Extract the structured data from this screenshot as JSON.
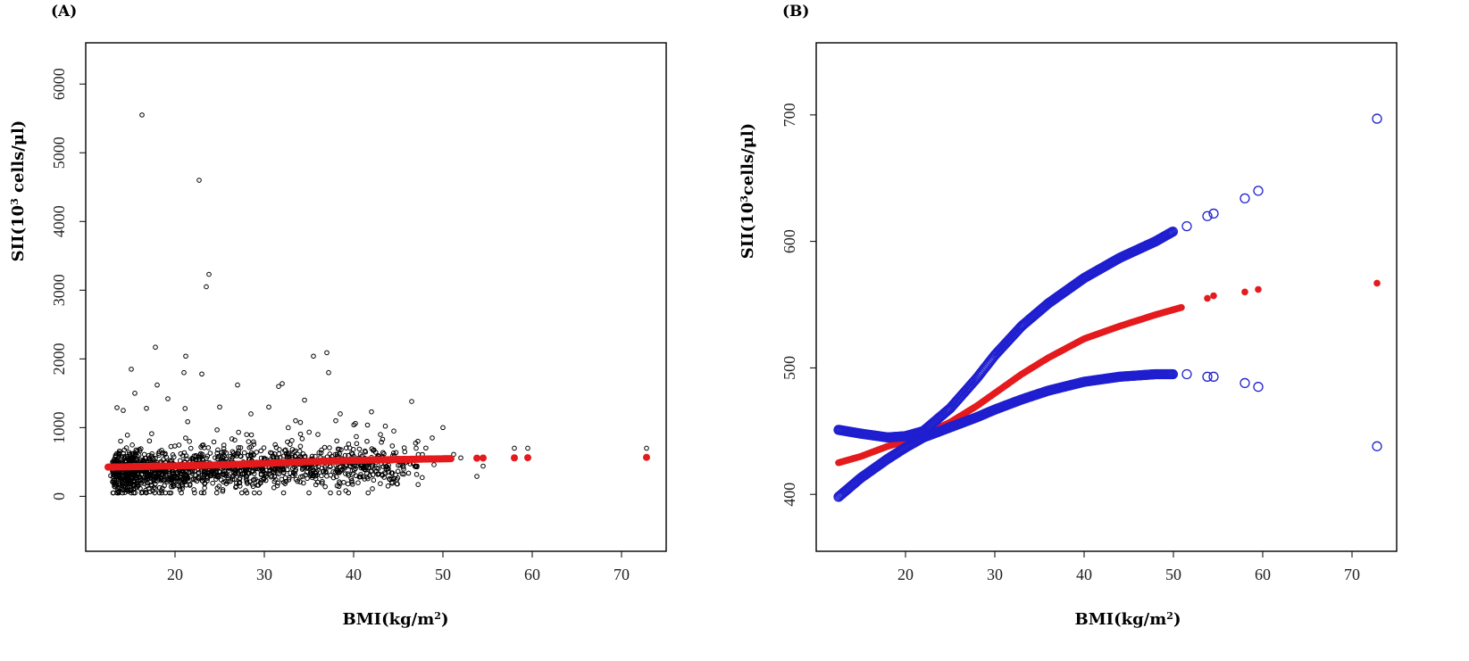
{
  "chart_data": [
    {
      "type": "scatter",
      "panel_label": "(A)",
      "xlabel_main": "BMI(kg/m",
      "xlabel_sup": "2",
      "xlabel_end": ")",
      "ylabel_main": "SII(10",
      "ylabel_sup": "3",
      "ylabel_end": " cells/μl)",
      "xlim": [
        10.0,
        75.0
      ],
      "ylim": [
        -800,
        6600
      ],
      "xticks": [
        "20",
        "30",
        "40",
        "50",
        "60",
        "70"
      ],
      "yticks": [
        "0",
        "1000",
        "2000",
        "3000",
        "4000",
        "5000",
        "6000"
      ],
      "series": [
        {
          "name": "observed",
          "style": "open-circle",
          "color": "#000000",
          "points": [
            [
              16.3,
              5550
            ],
            [
              22.7,
              4600
            ],
            [
              23.8,
              3230
            ],
            [
              23.5,
              3050
            ],
            [
              17.8,
              2170
            ],
            [
              37.0,
              2090
            ],
            [
              35.5,
              2040
            ],
            [
              21.2,
              2040
            ],
            [
              15.1,
              1850
            ],
            [
              37.2,
              1800
            ],
            [
              21.0,
              1800
            ],
            [
              23.0,
              1780
            ],
            [
              18.0,
              1620
            ],
            [
              32.0,
              1640
            ],
            [
              31.6,
              1600
            ],
            [
              27.0,
              1620
            ],
            [
              34.5,
              1400
            ],
            [
              38.5,
              1200
            ],
            [
              42.0,
              1230
            ],
            [
              46.5,
              1380
            ],
            [
              38.0,
              1100
            ],
            [
              40.2,
              1060
            ],
            [
              44.5,
              950
            ],
            [
              43.0,
              900
            ],
            [
              48.8,
              850
            ],
            [
              50.0,
              1000
            ],
            [
              47.0,
              700
            ],
            [
              51.2,
              610
            ],
            [
              53.8,
              290
            ],
            [
              54.5,
              440
            ],
            [
              58.0,
              700
            ],
            [
              59.5,
              700
            ],
            [
              72.8,
              700
            ],
            [
              49.0,
              460
            ],
            [
              45.0,
              450
            ],
            [
              13.5,
              1290
            ],
            [
              14.2,
              1250
            ],
            [
              15.5,
              1500
            ],
            [
              16.8,
              1280
            ],
            [
              19.2,
              1420
            ],
            [
              25.0,
              1300
            ],
            [
              28.5,
              1200
            ],
            [
              30.5,
              1300
            ],
            [
              33.5,
              1100
            ],
            [
              36.0,
              900
            ],
            [
              12.8,
              300
            ],
            [
              13.0,
              500
            ],
            [
              35.0,
              50
            ],
            [
              52.0,
              560
            ],
            [
              41.5,
              800
            ]
          ],
          "cloud": {
            "x_range": [
              13,
              50
            ],
            "y_range": [
              50,
              1300
            ],
            "count": 1500
          }
        },
        {
          "name": "fitted",
          "style": "filled-circle",
          "color": "#e41a1c",
          "x": [
            12.5,
            15,
            18,
            20,
            22,
            25,
            28,
            30,
            33,
            36,
            40,
            44,
            48,
            51,
            53.8,
            54.5,
            58.0,
            59.5,
            72.8
          ],
          "y": [
            425,
            430,
            438,
            442,
            447,
            457,
            470,
            480,
            495,
            508,
            523,
            533,
            542,
            548,
            555,
            557,
            560,
            562,
            567
          ]
        }
      ]
    },
    {
      "type": "scatter",
      "panel_label": "(B)",
      "xlabel_main": "BMI(kg/m",
      "xlabel_sup": "2",
      "xlabel_end": ")",
      "ylabel_main": "SII(10",
      "ylabel_sup": "3",
      "ylabel_end": "cells/μl)",
      "xlim": [
        10.0,
        75.0
      ],
      "ylim": [
        355,
        757
      ],
      "xticks": [
        "20",
        "30",
        "40",
        "50",
        "60",
        "70"
      ],
      "yticks": [
        "400",
        "500",
        "600",
        "700"
      ],
      "series": [
        {
          "name": "fitted",
          "style": "filled-circle",
          "color": "#e41a1c",
          "x": [
            12.5,
            15,
            18,
            20,
            22,
            25,
            28,
            30,
            33,
            36,
            40,
            44,
            48,
            51,
            53.8,
            54.5,
            58.0,
            59.5,
            72.8
          ],
          "y": [
            425,
            430,
            438,
            442,
            447,
            457,
            470,
            480,
            495,
            508,
            523,
            533,
            542,
            548,
            555,
            557,
            560,
            562,
            567
          ]
        },
        {
          "name": "upper 95% CI",
          "style": "open-circle",
          "color": "#1f1fd0",
          "x": [
            12.5,
            15,
            18,
            20,
            22,
            25,
            28,
            30,
            33,
            36,
            40,
            44,
            48,
            50,
            51.5,
            53.8,
            54.5,
            58.0,
            59.5,
            72.8
          ],
          "y": [
            451,
            448,
            445,
            446,
            450,
            468,
            492,
            510,
            533,
            551,
            571,
            587,
            600,
            608,
            612,
            620,
            622,
            634,
            640,
            697
          ]
        },
        {
          "name": "lower 95% CI",
          "style": "open-circle",
          "color": "#1f1fd0",
          "x": [
            12.5,
            15,
            18,
            20,
            22,
            25,
            28,
            30,
            33,
            36,
            40,
            44,
            48,
            50,
            51.5,
            53.8,
            54.5,
            58.0,
            59.5,
            72.8
          ],
          "y": [
            398,
            413,
            428,
            437,
            445,
            453,
            461,
            467,
            475,
            482,
            489,
            493,
            495,
            495,
            495,
            493,
            493,
            488,
            485,
            438
          ]
        }
      ]
    }
  ]
}
